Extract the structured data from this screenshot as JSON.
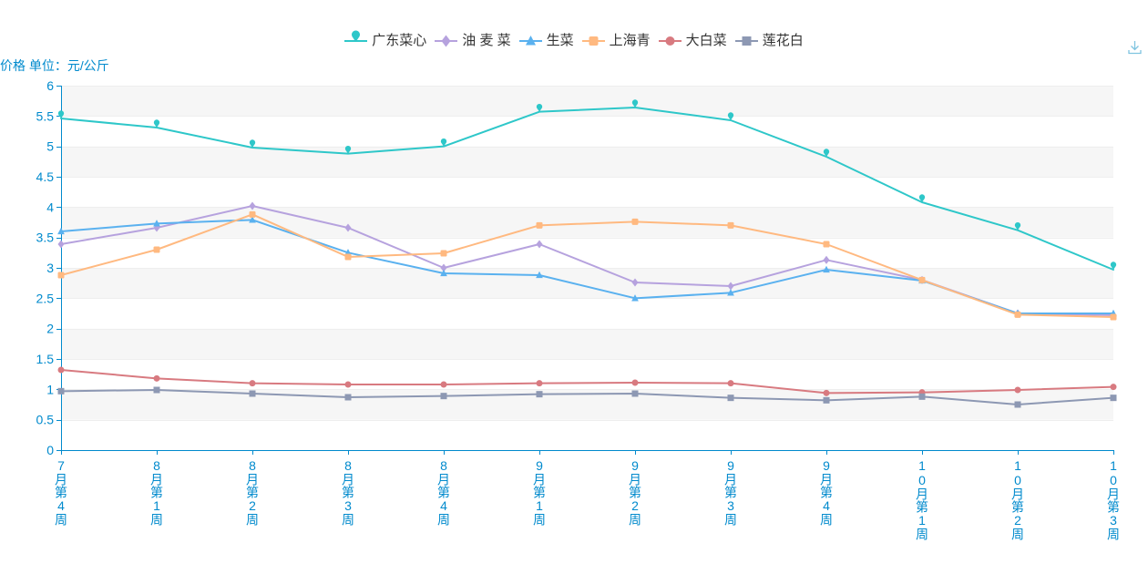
{
  "chart_data": {
    "type": "line",
    "title": "",
    "xlabel": "",
    "ylabel": "价格 单位：元/公斤",
    "ylim": [
      0,
      6
    ],
    "y_ticks": [
      0,
      0.5,
      1,
      1.5,
      2,
      2.5,
      3,
      3.5,
      4,
      4.5,
      5,
      5.5,
      6
    ],
    "grid": true,
    "legend_position": "top-center",
    "categories": [
      "7月第4周",
      "8月第1周",
      "8月第2周",
      "8月第3周",
      "8月第4周",
      "9月第1周",
      "9月第2周",
      "9月第3周",
      "9月第4周",
      "10月第1周",
      "10月第2周",
      "10月第3周"
    ],
    "series": [
      {
        "name": "广东菜心",
        "color": "#2ec7c9",
        "symbol": "pin",
        "values": [
          5.46,
          5.31,
          4.98,
          4.88,
          5.0,
          5.57,
          5.64,
          5.43,
          4.83,
          4.08,
          3.62,
          2.97
        ]
      },
      {
        "name": "油 麦 菜",
        "color": "#b6a2de",
        "symbol": "diamond",
        "values": [
          3.39,
          3.66,
          4.02,
          3.66,
          3.0,
          3.39,
          2.76,
          2.7,
          3.13,
          2.8,
          2.25,
          2.22
        ]
      },
      {
        "name": "生菜",
        "color": "#5ab1ef",
        "symbol": "triangle",
        "values": [
          3.6,
          3.73,
          3.79,
          3.25,
          2.91,
          2.88,
          2.5,
          2.59,
          2.97,
          2.79,
          2.25,
          2.25
        ]
      },
      {
        "name": "上海青",
        "color": "#ffb980",
        "symbol": "rounded-square",
        "values": [
          2.88,
          3.3,
          3.88,
          3.18,
          3.24,
          3.7,
          3.76,
          3.7,
          3.39,
          2.8,
          2.23,
          2.19
        ]
      },
      {
        "name": "大白菜",
        "color": "#d87a80",
        "symbol": "circle",
        "values": [
          1.32,
          1.18,
          1.1,
          1.08,
          1.08,
          1.1,
          1.11,
          1.1,
          0.94,
          0.95,
          0.99,
          1.04
        ]
      },
      {
        "name": "莲花白",
        "color": "#8d98b3",
        "symbol": "square",
        "values": [
          0.97,
          0.99,
          0.93,
          0.87,
          0.89,
          0.92,
          0.93,
          0.86,
          0.82,
          0.88,
          0.75,
          0.86
        ]
      }
    ]
  },
  "toolbox": {
    "save_icon": "download-icon"
  },
  "colors": {
    "axis": "#008acd",
    "legend_text": "#333333",
    "split_line": "#eeeeee",
    "split_area": [
      "#ffffff",
      "#f6f6f6"
    ]
  }
}
